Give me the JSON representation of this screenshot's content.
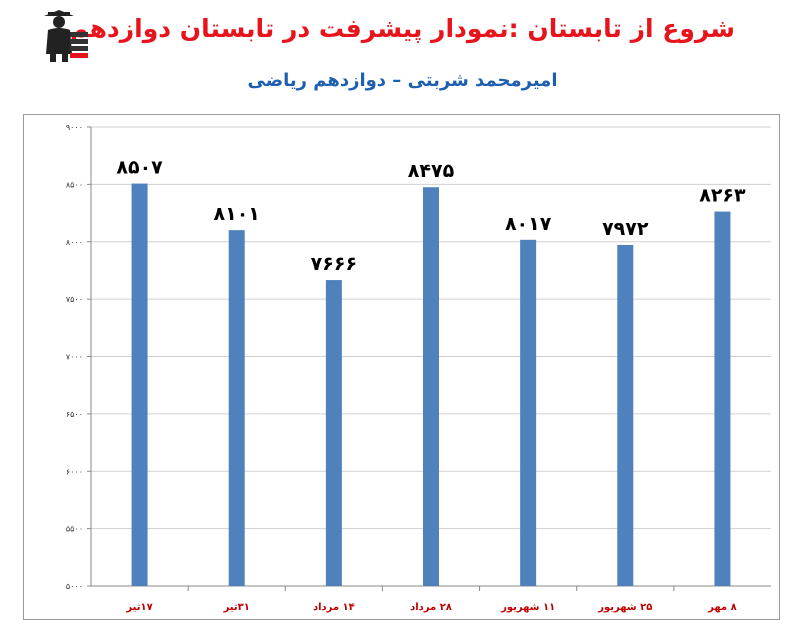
{
  "header": {
    "title": "شروع از تابستان :نمودار پیشرفت در تابستان دوازدهم",
    "subtitle": "امیرمحمد شربتی – دوازدهم ریاضی"
  },
  "logo": {
    "icon": "graduate-logo-icon"
  },
  "colors": {
    "title": "#e8141c",
    "subtitle": "#1f5fb0",
    "bar": "#4f81bd",
    "category_label": "#c00000"
  },
  "chart_data": {
    "type": "bar",
    "categories": [
      "۱۷تیر",
      "۳۱تیر",
      "۱۴ مرداد",
      "۲۸ مرداد",
      "۱۱ شهریور",
      "۲۵ شهریور",
      "۸ مهر"
    ],
    "values": [
      8507,
      8101,
      7666,
      8475,
      8017,
      7972,
      8263
    ],
    "value_labels": [
      "۸۵۰۷",
      "۸۱۰۱",
      "۷۶۶۶",
      "۸۴۷۵",
      "۸۰۱۷",
      "۷۹۷۲",
      "۸۲۶۳"
    ],
    "yticks": [
      5000,
      5500,
      6000,
      6500,
      7000,
      7500,
      8000,
      8500,
      9000
    ],
    "ytick_labels": [
      "۵۰۰۰",
      "۵۵۰۰",
      "۶۰۰۰",
      "۶۵۰۰",
      "۷۰۰۰",
      "۷۵۰۰",
      "۸۰۰۰",
      "۸۵۰۰",
      "۹۰۰۰"
    ],
    "ylim": [
      5000,
      9000
    ],
    "grid": true,
    "legend": "none"
  }
}
